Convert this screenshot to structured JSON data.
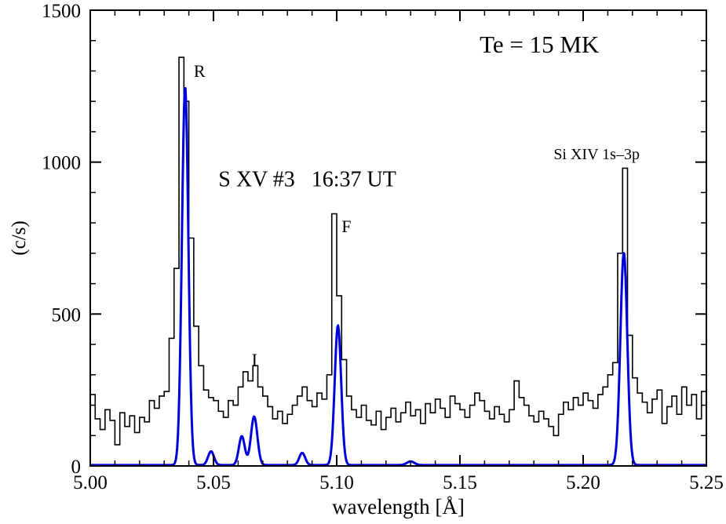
{
  "figure": {
    "description": "X-ray spectrum plot: S XV line complex with model fit",
    "background": "#ffffff"
  },
  "chart_data": {
    "type": "line",
    "title": "",
    "xlabel": "wavelength [Å]",
    "ylabel": "(c/s)",
    "xlim": [
      5.0,
      5.25
    ],
    "ylim": [
      0,
      1500
    ],
    "grid": false,
    "legend": "none",
    "x_tick_values": [
      5.0,
      5.05,
      5.1,
      5.15,
      5.2,
      5.25
    ],
    "x_tick_labels": [
      "5.00",
      "5.05",
      "5.10",
      "5.15",
      "5.20",
      "5.25"
    ],
    "x_minor_step": 0.01,
    "y_tick_values": [
      0,
      500,
      1000,
      1500
    ],
    "y_tick_labels": [
      "0",
      "500",
      "1000",
      "1500"
    ],
    "y_minor_step": 100,
    "colors": {
      "histogram": "#000000",
      "model": "#0000dd",
      "axis": "#000000",
      "background": "#ffffff"
    },
    "annotations": [
      {
        "name": "temperature-label",
        "text": "Te = 15 MK",
        "x": 5.158,
        "y": 1360,
        "size": 31
      },
      {
        "name": "observation-label",
        "text": "S XV #3   16:37 UT",
        "x": 5.052,
        "y": 920,
        "size": 28
      },
      {
        "name": "line-label-R",
        "text": "R",
        "x": 5.042,
        "y": 1280,
        "size": 22
      },
      {
        "name": "line-label-I",
        "text": "I",
        "x": 5.0655,
        "y": 330,
        "size": 22
      },
      {
        "name": "line-label-F",
        "text": "F",
        "x": 5.102,
        "y": 770,
        "size": 22
      },
      {
        "name": "line-label-sixiv",
        "text": "Si XIV 1s–3p",
        "x": 5.188,
        "y": 1010,
        "size": 20
      }
    ],
    "series": [
      {
        "name": "observed-histogram",
        "style": "histogram",
        "color": "#000000",
        "bin_start": 5.0,
        "bin_width": 0.002,
        "values": [
          235,
          155,
          120,
          185,
          150,
          70,
          175,
          130,
          165,
          110,
          160,
          145,
          215,
          190,
          230,
          245,
          420,
          650,
          1345,
          1200,
          750,
          460,
          330,
          250,
          225,
          215,
          180,
          160,
          215,
          200,
          260,
          310,
          280,
          330,
          260,
          230,
          195,
          155,
          180,
          140,
          170,
          200,
          230,
          260,
          215,
          195,
          240,
          220,
          300,
          830,
          560,
          350,
          230,
          185,
          160,
          200,
          150,
          135,
          180,
          120,
          160,
          190,
          145,
          175,
          210,
          165,
          185,
          140,
          205,
          175,
          220,
          190,
          160,
          230,
          205,
          185,
          160,
          200,
          240,
          215,
          180,
          155,
          195,
          170,
          145,
          185,
          280,
          225,
          200,
          165,
          145,
          180,
          155,
          130,
          100,
          170,
          210,
          185,
          225,
          200,
          240,
          215,
          190,
          235,
          260,
          300,
          340,
          700,
          980,
          430,
          290,
          240,
          210,
          175,
          220,
          250,
          140,
          195,
          230,
          170,
          260,
          200,
          235,
          155,
          245
        ]
      },
      {
        "name": "model-fit",
        "style": "gaussian-sum",
        "color": "#0000dd",
        "baseline": 3,
        "components": [
          {
            "center": 5.0385,
            "sigma": 0.0013,
            "amplitude": 1245
          },
          {
            "center": 5.049,
            "sigma": 0.0012,
            "amplitude": 45
          },
          {
            "center": 5.0615,
            "sigma": 0.0012,
            "amplitude": 95
          },
          {
            "center": 5.0665,
            "sigma": 0.0013,
            "amplitude": 160
          },
          {
            "center": 5.086,
            "sigma": 0.0012,
            "amplitude": 40
          },
          {
            "center": 5.1005,
            "sigma": 0.0013,
            "amplitude": 460
          },
          {
            "center": 5.13,
            "sigma": 0.0015,
            "amplitude": 12
          },
          {
            "center": 5.2165,
            "sigma": 0.0014,
            "amplitude": 700
          }
        ]
      }
    ]
  }
}
